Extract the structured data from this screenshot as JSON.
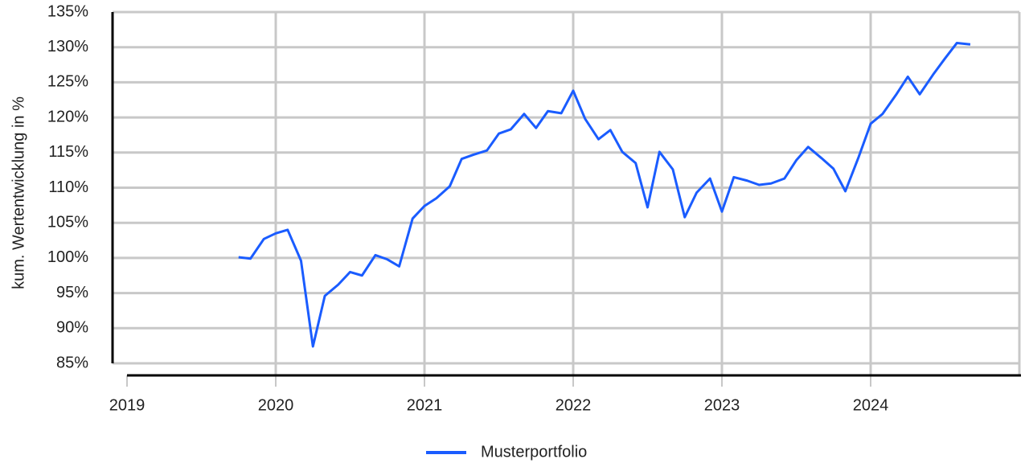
{
  "chart_data": {
    "type": "line",
    "y_label": "kum. Wertentwicklung in %",
    "x": [
      2019.75,
      2019.83,
      2019.92,
      2020.0,
      2020.08,
      2020.17,
      2020.25,
      2020.33,
      2020.42,
      2020.5,
      2020.58,
      2020.67,
      2020.75,
      2020.83,
      2020.92,
      2021.0,
      2021.08,
      2021.17,
      2021.25,
      2021.33,
      2021.42,
      2021.5,
      2021.58,
      2021.67,
      2021.75,
      2021.83,
      2021.92,
      2022.0,
      2022.08,
      2022.17,
      2022.25,
      2022.33,
      2022.42,
      2022.5,
      2022.58,
      2022.67,
      2022.75,
      2022.83,
      2022.92,
      2023.0,
      2023.08,
      2023.17,
      2023.25,
      2023.33,
      2023.42,
      2023.5,
      2023.58,
      2023.67,
      2023.75,
      2023.83,
      2023.92,
      2024.0,
      2024.08,
      2024.17,
      2024.25,
      2024.33,
      2024.42,
      2024.5,
      2024.58,
      2024.67
    ],
    "series": [
      {
        "name": "Musterportfolio",
        "color": "#1a5cff",
        "values": [
          100.1,
          99.9,
          102.7,
          103.5,
          104.0,
          99.6,
          87.4,
          94.6,
          96.2,
          98.0,
          97.5,
          100.4,
          99.8,
          98.8,
          105.6,
          107.4,
          108.5,
          110.2,
          114.1,
          114.7,
          115.3,
          117.7,
          118.3,
          120.5,
          118.5,
          120.9,
          120.6,
          123.8,
          119.8,
          116.9,
          118.2,
          115.1,
          113.5,
          107.2,
          115.1,
          112.6,
          105.8,
          109.3,
          111.3,
          106.6,
          111.5,
          111.0,
          110.4,
          110.6,
          111.3,
          113.9,
          115.8,
          114.2,
          112.7,
          109.5,
          114.4,
          119.1,
          120.5,
          123.2,
          125.8,
          123.3,
          126.1,
          128.4,
          130.6,
          130.4
        ]
      }
    ],
    "xlim": [
      2019,
      2025
    ],
    "xticks": [
      2019,
      2020,
      2021,
      2022,
      2023,
      2024
    ],
    "ylim": [
      85,
      135
    ],
    "yticks": [
      {
        "value": 85,
        "label": "85%"
      },
      {
        "value": 90,
        "label": "90%"
      },
      {
        "value": 95,
        "label": "95%"
      },
      {
        "value": 100,
        "label": "100%"
      },
      {
        "value": 105,
        "label": "105%"
      },
      {
        "value": 110,
        "label": "110%"
      },
      {
        "value": 115,
        "label": "115%"
      },
      {
        "value": 120,
        "label": "120%"
      },
      {
        "value": 125,
        "label": "125%"
      },
      {
        "value": 130,
        "label": "130%"
      },
      {
        "value": 135,
        "label": "135%"
      }
    ],
    "grid": true,
    "legend": "bottom"
  }
}
